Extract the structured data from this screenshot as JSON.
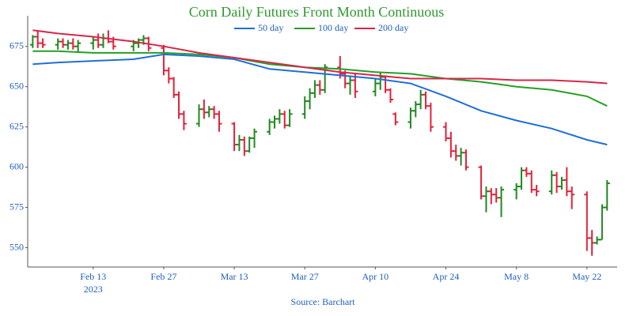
{
  "chart_data": {
    "type": "ohlc",
    "title": "Corn Daily Futures Front Month Continuous",
    "source": "Source: Barchart",
    "x_year_label": "2023",
    "up_color": "#1f8a1f",
    "down_color": "#e0223c",
    "xlim": [
      "2023-01-31",
      "2023-05-28"
    ],
    "xticks": [
      {
        "value": "2023-02-13",
        "label": "Feb 13"
      },
      {
        "value": "2023-02-27",
        "label": "Feb 27"
      },
      {
        "value": "2023-03-13",
        "label": "Mar 13"
      },
      {
        "value": "2023-03-27",
        "label": "Mar 27"
      },
      {
        "value": "2023-04-10",
        "label": "Apr 10"
      },
      {
        "value": "2023-04-24",
        "label": "Apr 24"
      },
      {
        "value": "2023-05-08",
        "label": "May 8"
      },
      {
        "value": "2023-05-22",
        "label": "May 22"
      }
    ],
    "ylim": [
      538,
      694
    ],
    "yticks": [
      550,
      575,
      600,
      625,
      650,
      675
    ],
    "x": [
      "2023-02-01",
      "2023-02-02",
      "2023-02-03",
      "2023-02-06",
      "2023-02-07",
      "2023-02-08",
      "2023-02-09",
      "2023-02-10",
      "2023-02-13",
      "2023-02-14",
      "2023-02-15",
      "2023-02-16",
      "2023-02-17",
      "2023-02-21",
      "2023-02-22",
      "2023-02-23",
      "2023-02-24",
      "2023-02-27",
      "2023-02-28",
      "2023-03-01",
      "2023-03-02",
      "2023-03-03",
      "2023-03-06",
      "2023-03-07",
      "2023-03-08",
      "2023-03-09",
      "2023-03-10",
      "2023-03-13",
      "2023-03-14",
      "2023-03-15",
      "2023-03-16",
      "2023-03-17",
      "2023-03-20",
      "2023-03-21",
      "2023-03-22",
      "2023-03-23",
      "2023-03-24",
      "2023-03-27",
      "2023-03-28",
      "2023-03-29",
      "2023-03-30",
      "2023-03-31",
      "2023-04-03",
      "2023-04-04",
      "2023-04-05",
      "2023-04-06",
      "2023-04-10",
      "2023-04-11",
      "2023-04-12",
      "2023-04-13",
      "2023-04-14",
      "2023-04-17",
      "2023-04-18",
      "2023-04-19",
      "2023-04-20",
      "2023-04-21",
      "2023-04-24",
      "2023-04-25",
      "2023-04-26",
      "2023-04-27",
      "2023-04-28",
      "2023-05-01",
      "2023-05-02",
      "2023-05-03",
      "2023-05-04",
      "2023-05-05",
      "2023-05-08",
      "2023-05-09",
      "2023-05-10",
      "2023-05-11",
      "2023-05-12",
      "2023-05-15",
      "2023-05-16",
      "2023-05-17",
      "2023-05-18",
      "2023-05-19",
      "2023-05-22",
      "2023-05-23",
      "2023-05-24",
      "2023-05-25",
      "2023-05-26"
    ],
    "open": [
      676,
      681,
      677,
      676,
      678,
      676,
      677,
      675,
      677,
      679,
      676,
      680,
      678,
      675,
      677,
      679,
      680,
      674,
      660,
      655,
      645,
      633,
      627,
      636,
      634,
      636,
      633,
      627,
      614,
      617,
      610,
      618,
      622,
      628,
      630,
      633,
      626,
      633,
      641,
      646,
      651,
      648,
      662,
      658,
      652,
      654,
      647,
      652,
      656,
      648,
      633,
      628,
      635,
      639,
      645,
      638,
      625,
      618,
      610,
      607,
      609,
      600,
      582,
      585,
      583,
      581,
      586,
      588,
      598,
      596,
      586,
      585,
      595,
      588,
      592,
      585,
      583,
      556,
      553,
      555,
      575
    ],
    "high": [
      682,
      685,
      680,
      680,
      680,
      679,
      680,
      679,
      681,
      683,
      683,
      685,
      681,
      679,
      680,
      682,
      681,
      676,
      662,
      656,
      647,
      635,
      639,
      642,
      638,
      638,
      635,
      628,
      620,
      619,
      619,
      624,
      630,
      632,
      636,
      635,
      636,
      644,
      649,
      654,
      654,
      664,
      669,
      660,
      657,
      658,
      655,
      659,
      657,
      649,
      634,
      637,
      641,
      648,
      647,
      640,
      628,
      622,
      614,
      612,
      611,
      601,
      588,
      587,
      587,
      588,
      590,
      600,
      600,
      598,
      589,
      598,
      597,
      594,
      600,
      588,
      585,
      561,
      557,
      577,
      592
    ],
    "low": [
      674,
      674,
      674,
      673,
      674,
      673,
      673,
      671,
      673,
      674,
      674,
      677,
      673,
      672,
      674,
      676,
      672,
      657,
      652,
      643,
      630,
      623,
      625,
      630,
      631,
      630,
      622,
      610,
      610,
      607,
      609,
      612,
      620,
      624,
      627,
      624,
      625,
      630,
      636,
      643,
      645,
      646,
      655,
      649,
      645,
      643,
      644,
      648,
      646,
      640,
      626,
      624,
      631,
      636,
      636,
      622,
      616,
      606,
      604,
      601,
      598,
      580,
      572,
      577,
      578,
      569,
      580,
      586,
      594,
      584,
      582,
      583,
      584,
      586,
      582,
      574,
      548,
      545,
      552,
      555,
      573
    ],
    "close": [
      681,
      677,
      676,
      678,
      676,
      677,
      675,
      677,
      679,
      676,
      680,
      678,
      675,
      677,
      679,
      680,
      674,
      660,
      655,
      645,
      633,
      627,
      636,
      634,
      636,
      633,
      627,
      614,
      617,
      610,
      618,
      622,
      628,
      630,
      633,
      626,
      633,
      641,
      646,
      651,
      648,
      662,
      658,
      652,
      654,
      647,
      652,
      656,
      648,
      642,
      628,
      635,
      639,
      645,
      638,
      625,
      618,
      610,
      607,
      609,
      600,
      582,
      585,
      583,
      581,
      586,
      588,
      598,
      596,
      586,
      585,
      595,
      588,
      592,
      585,
      583,
      556,
      553,
      555,
      575,
      590
    ],
    "series": [
      {
        "name": "50 day",
        "color": "#1f6fd6",
        "x": [
          "2023-02-01",
          "2023-02-06",
          "2023-02-13",
          "2023-02-21",
          "2023-02-27",
          "2023-03-06",
          "2023-03-13",
          "2023-03-20",
          "2023-03-27",
          "2023-04-03",
          "2023-04-10",
          "2023-04-17",
          "2023-04-24",
          "2023-05-01",
          "2023-05-08",
          "2023-05-15",
          "2023-05-22",
          "2023-05-26"
        ],
        "values": [
          664,
          665,
          666,
          667,
          670,
          669,
          667,
          661,
          659,
          657,
          655,
          652,
          644,
          635,
          629,
          624,
          617,
          614
        ]
      },
      {
        "name": "100 day",
        "color": "#24a024",
        "x": [
          "2023-02-01",
          "2023-02-06",
          "2023-02-13",
          "2023-02-21",
          "2023-02-27",
          "2023-03-06",
          "2023-03-13",
          "2023-03-20",
          "2023-03-27",
          "2023-04-03",
          "2023-04-10",
          "2023-04-17",
          "2023-04-24",
          "2023-05-01",
          "2023-05-08",
          "2023-05-15",
          "2023-05-22",
          "2023-05-26"
        ],
        "values": [
          672,
          672,
          671,
          671,
          671,
          670,
          668,
          664,
          662,
          661,
          659,
          658,
          655,
          653,
          650,
          648,
          644,
          638
        ]
      },
      {
        "name": "200 day",
        "color": "#d6274a",
        "x": [
          "2023-02-01",
          "2023-02-06",
          "2023-02-13",
          "2023-02-21",
          "2023-02-27",
          "2023-03-06",
          "2023-03-13",
          "2023-03-20",
          "2023-03-27",
          "2023-04-03",
          "2023-04-10",
          "2023-04-17",
          "2023-04-24",
          "2023-05-01",
          "2023-05-08",
          "2023-05-15",
          "2023-05-22",
          "2023-05-26"
        ],
        "values": [
          685,
          683,
          681,
          678,
          675,
          671,
          668,
          665,
          662,
          659,
          657,
          655,
          655,
          655,
          654,
          654,
          653,
          652
        ]
      }
    ]
  }
}
